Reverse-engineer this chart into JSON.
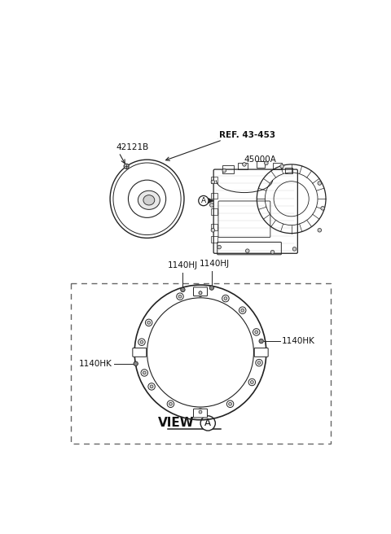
{
  "bg_color": "#ffffff",
  "label_42121B": "42121B",
  "label_ref": "REF. 43-453",
  "label_45000A": "45000A",
  "label_1140HJ_1": "1140HJ",
  "label_1140HJ_2": "1140HJ",
  "label_1140HK_left": "1140HK",
  "label_1140HK_right": "1140HK",
  "label_view": "VIEW",
  "label_A": "A",
  "line_color": "#222222",
  "dashed_box_color": "#555555",
  "text_color": "#111111",
  "font_size_labels": 7.5,
  "font_size_view": 10
}
